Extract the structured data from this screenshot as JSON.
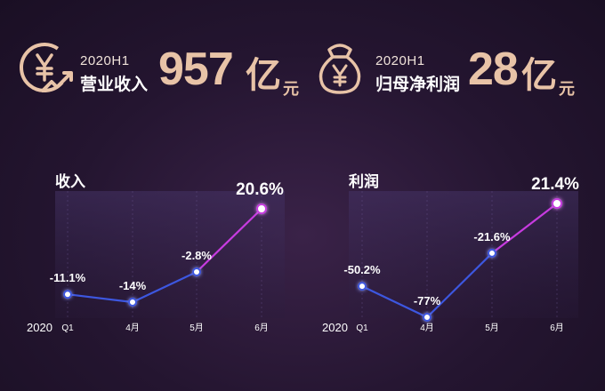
{
  "kpis": [
    {
      "period": "2020H1",
      "name": "营业收入",
      "value": "957",
      "unit": "亿",
      "unit2": "元",
      "icon": "yen-growth-icon"
    },
    {
      "period": "2020H1",
      "name": "归母净利润",
      "value": "28",
      "unit": "亿",
      "unit2": "元",
      "icon": "yen-moneybag-icon"
    }
  ],
  "colors": {
    "accent_gold": "#e8c3a7",
    "line_blue": "#3d57e0",
    "line_purple": "#c73be0",
    "panel": "#3a2a55"
  },
  "chart_data": [
    {
      "type": "line",
      "title": "收入",
      "year_label": "2020",
      "categories": [
        "Q1",
        "4月",
        "5月",
        "6月"
      ],
      "values": [
        -11.1,
        -14,
        -2.8,
        20.6
      ],
      "labels": [
        "-11.1%",
        "-14%",
        "-2.8%",
        "20.6%"
      ],
      "ylim": [
        -20,
        22
      ],
      "highlight_last": true
    },
    {
      "type": "line",
      "title": "利润",
      "year_label": "2020",
      "categories": [
        "Q1",
        "4月",
        "5月",
        "6月"
      ],
      "values": [
        -50.2,
        -77,
        -21.6,
        21.4
      ],
      "labels": [
        "-50.2%",
        "-77%",
        "-21.6%",
        "21.4%"
      ],
      "ylim": [
        -80,
        25
      ],
      "highlight_last": true
    }
  ]
}
